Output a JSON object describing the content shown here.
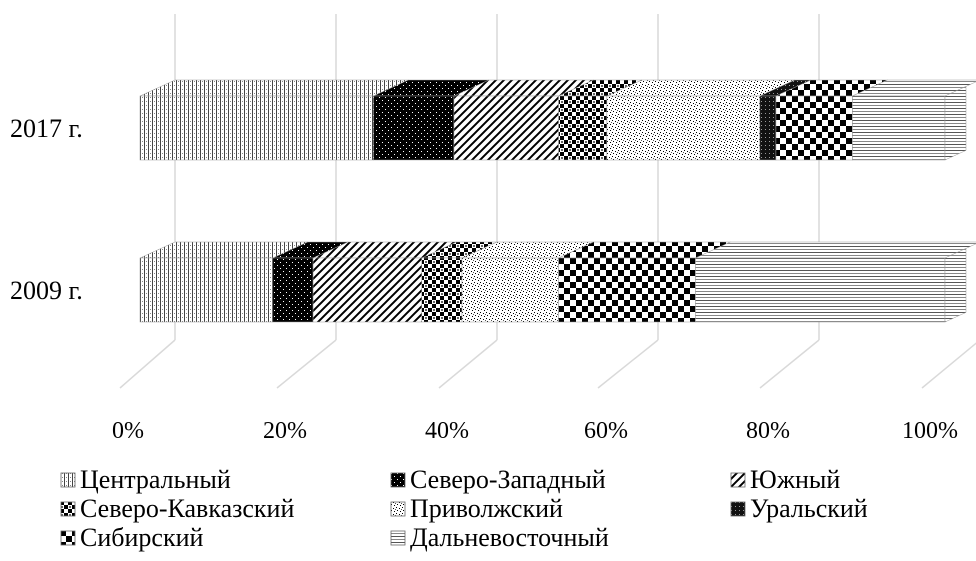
{
  "chart_data": {
    "type": "bar",
    "orientation": "horizontal",
    "stacked": "percent",
    "style": "3d",
    "categories": [
      "2017 г.",
      "2009 г."
    ],
    "series": [
      {
        "name": "Центральный",
        "values": [
          29,
          16.5
        ],
        "pattern": "vlines"
      },
      {
        "name": "Северо-Западный",
        "values": [
          10,
          5
        ],
        "pattern": "dots"
      },
      {
        "name": "Южный",
        "values": [
          13,
          13.5
        ],
        "pattern": "diag"
      },
      {
        "name": "Северо-Кавказский",
        "values": [
          6,
          5
        ],
        "pattern": "checker-small"
      },
      {
        "name": "Приволжский",
        "values": [
          19,
          12
        ],
        "pattern": "speckle"
      },
      {
        "name": "Уральский",
        "values": [
          2,
          0
        ],
        "pattern": "dense"
      },
      {
        "name": "Сибирский",
        "values": [
          9.5,
          17
        ],
        "pattern": "checker"
      },
      {
        "name": "Дальневосточный",
        "values": [
          11.5,
          31
        ],
        "pattern": "hlines"
      }
    ],
    "xlim": [
      0,
      100
    ],
    "x_ticks": [
      "0%",
      "20%",
      "40%",
      "60%",
      "80%",
      "100%"
    ],
    "grid": true,
    "legend_position": "bottom"
  }
}
